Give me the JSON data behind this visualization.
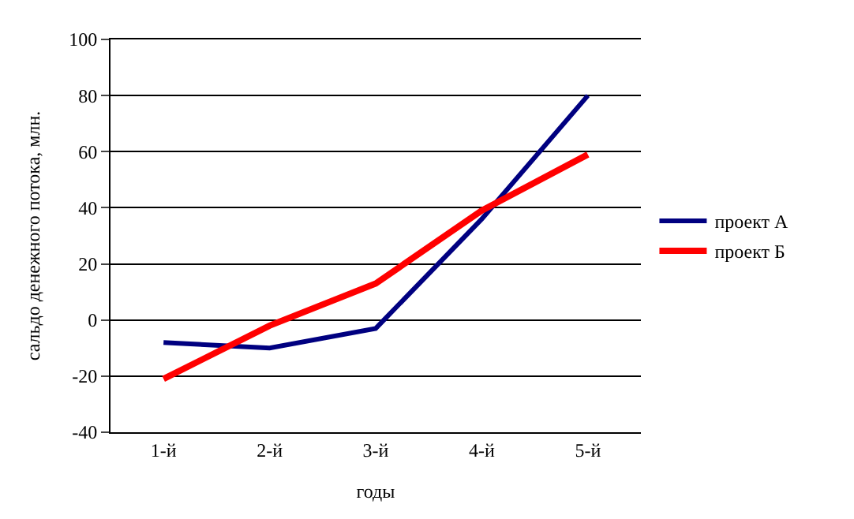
{
  "chart_data": {
    "type": "line",
    "xlabel": "годы",
    "ylabel": "сальдо денежного потока, млн.",
    "categories": [
      "1-й",
      "2-й",
      "3-й",
      "4-й",
      "5-й"
    ],
    "series": [
      {
        "name": "проект А",
        "color": "#000080",
        "values": [
          -8,
          -10,
          -3,
          36,
          80
        ]
      },
      {
        "name": "проект Б",
        "color": "#ff0000",
        "values": [
          -21,
          -2,
          13,
          39,
          59
        ]
      }
    ],
    "ylim": [
      -40,
      100
    ],
    "yticks": [
      -40,
      -20,
      0,
      20,
      40,
      60,
      80,
      100
    ],
    "grid": "y",
    "legend": "right",
    "marker": "none",
    "line_style": "solid"
  }
}
